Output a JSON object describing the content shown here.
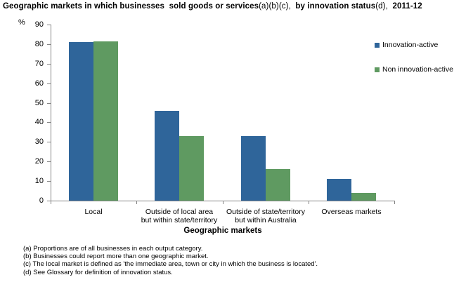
{
  "title": {
    "segments": [
      {
        "text": "Geographic markets in which businesses  sold goods or services",
        "bold": true
      },
      {
        "text": "(a)(b)(c),",
        "bold": false
      },
      {
        "text": "  by innovation status",
        "bold": true
      },
      {
        "text": "(d),",
        "bold": false
      },
      {
        "text": "  2011-12",
        "bold": true
      }
    ]
  },
  "chart_data": {
    "type": "bar",
    "categories": [
      "Local",
      "Outside of local area\nbut within state/territory",
      "Outside of state/territory\nbut within Australia",
      "Overseas markets"
    ],
    "series": [
      {
        "name": "Innovation-active",
        "color": "#2F659A",
        "values": [
          81,
          46,
          33,
          11
        ]
      },
      {
        "name": "Non innovation-active",
        "color": "#5F9A61",
        "values": [
          81.5,
          33,
          16,
          4
        ]
      }
    ],
    "title": "Geographic markets in which businesses sold goods or services(a)(b)(c), by innovation status(d), 2011-12",
    "xlabel": "Geographic markets",
    "ylabel": "%",
    "ylim": [
      0,
      90
    ],
    "ytick_step": 10,
    "grid": false,
    "legend_position": "right-top",
    "axis_color": "#848484"
  },
  "footnotes": [
    "(a) Proportions are of all businesses in each output category.",
    "(b) Businesses could report more than one geographic market.",
    "(c) The local market is defined as 'the immediate  area, town or city in  which the business is located'.",
    "(d) See Glossary for definition of innovation status."
  ]
}
